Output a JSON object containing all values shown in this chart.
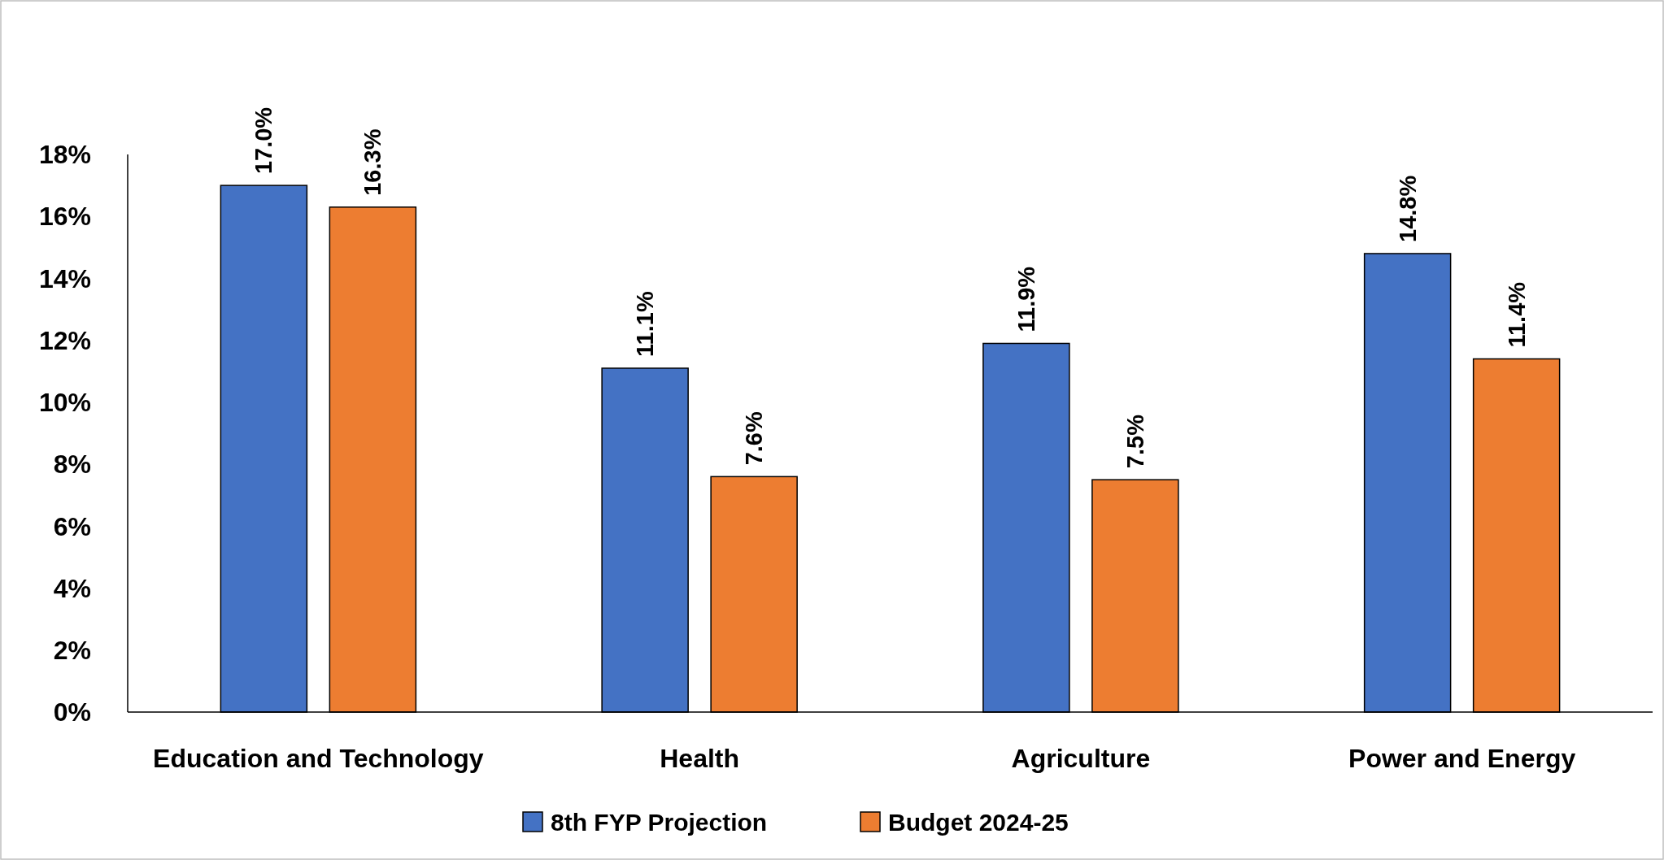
{
  "chart_data": {
    "type": "bar",
    "categories": [
      "Education and Technology",
      "Health",
      "Agriculture",
      "Power and Energy"
    ],
    "series": [
      {
        "name": "8th FYP Projection",
        "color": "#4472c4",
        "values": [
          17.0,
          11.1,
          11.9,
          14.8
        ],
        "value_labels": [
          "17.0%",
          "11.1%",
          "11.9%",
          "14.8%"
        ]
      },
      {
        "name": "Budget 2024-25",
        "color": "#ed7d31",
        "values": [
          16.3,
          7.6,
          7.5,
          11.4
        ],
        "value_labels": [
          "16.3%",
          "7.6%",
          "7.5%",
          "11.4%"
        ]
      }
    ],
    "ylim": [
      0,
      18
    ],
    "yticks": [
      {
        "value": 0,
        "label": "0%"
      },
      {
        "value": 2,
        "label": "2%"
      },
      {
        "value": 4,
        "label": "4%"
      },
      {
        "value": 6,
        "label": "6%"
      },
      {
        "value": 8,
        "label": "8%"
      },
      {
        "value": 10,
        "label": "10%"
      },
      {
        "value": 12,
        "label": "12%"
      },
      {
        "value": 14,
        "label": "14%"
      },
      {
        "value": 16,
        "label": "16%"
      },
      {
        "value": 18,
        "label": "18%"
      }
    ],
    "grid": false,
    "legend": "bottom"
  }
}
